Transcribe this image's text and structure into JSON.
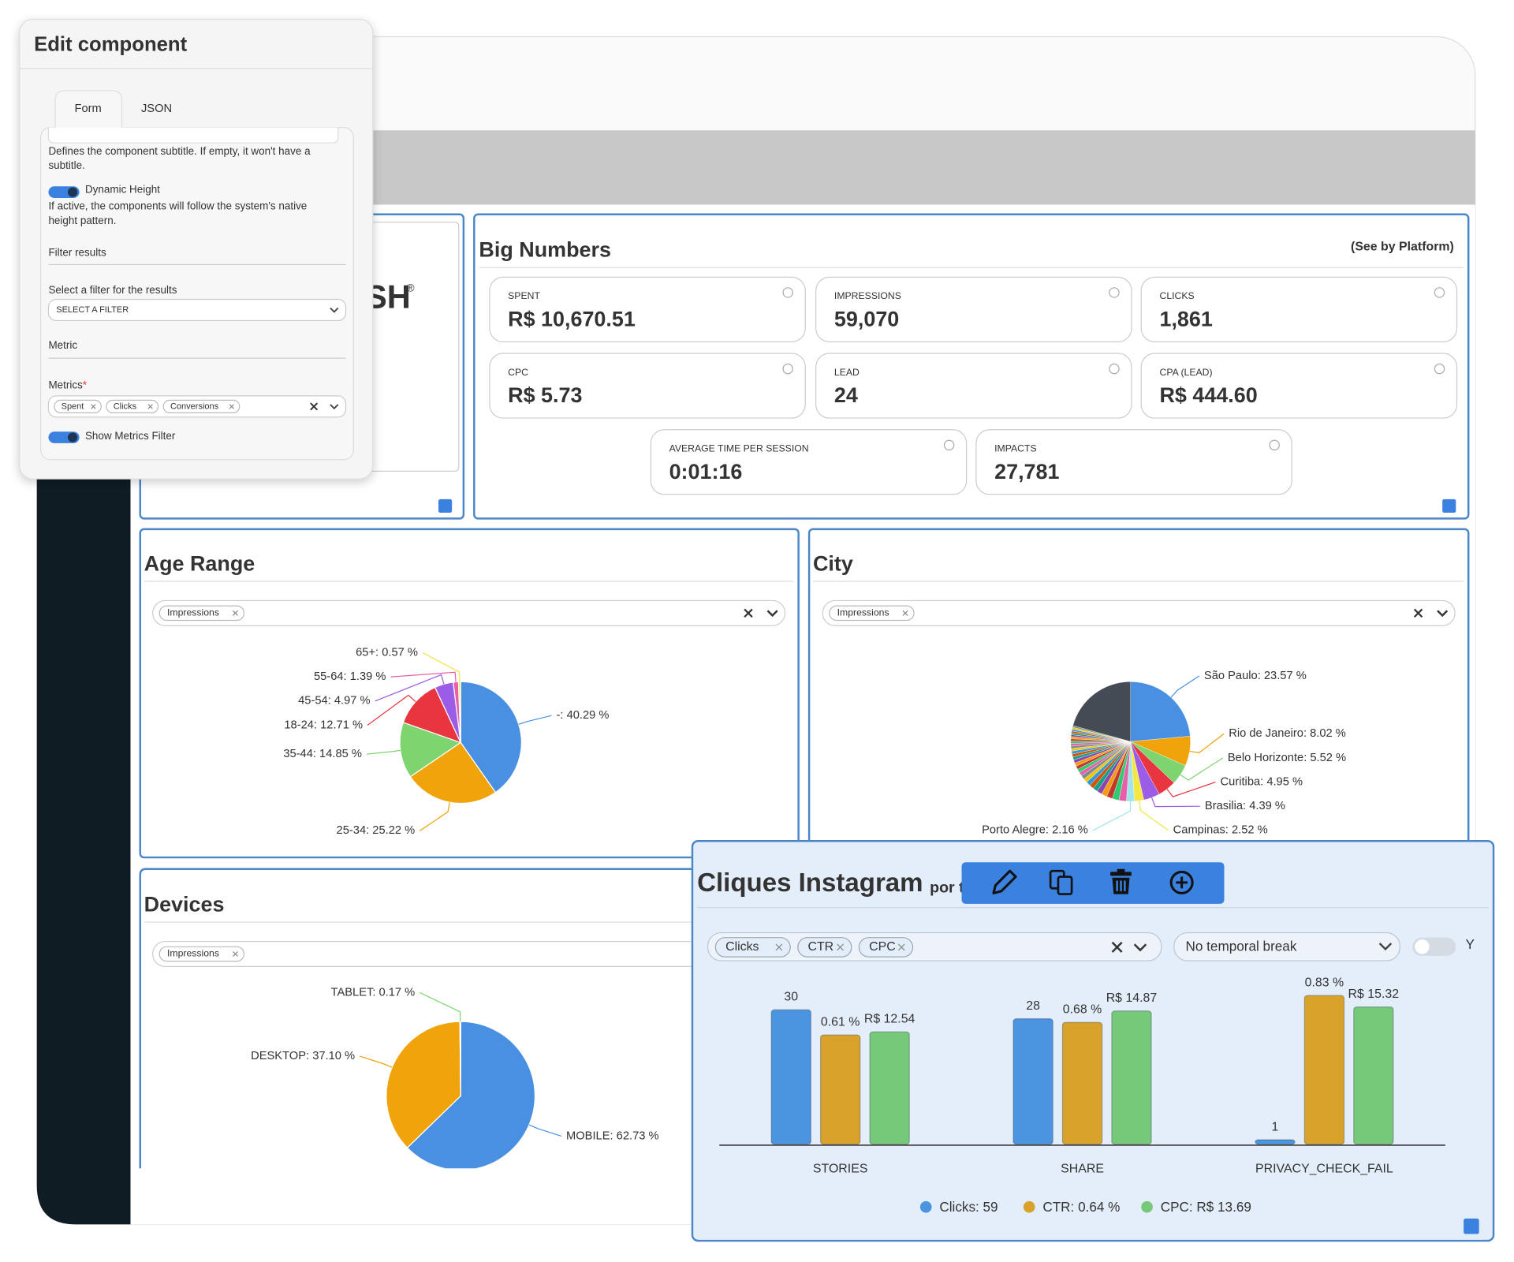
{
  "edit_panel": {
    "title": "Edit component",
    "tabs": [
      "Form",
      "JSON"
    ],
    "subtitle_help": [
      "Defines the component subtitle. If empty, it won't have a",
      "subtitle."
    ],
    "dynamic_height": {
      "label": "Dynamic Height",
      "help": [
        "If active, the components will follow the system's native",
        "height pattern."
      ],
      "on": true
    },
    "filter_section": "Filter results",
    "filter_label": "Select a filter for the results",
    "filter_placeholder": "SELECT A FILTER",
    "metric_section": "Metric",
    "metrics_label": "Metrics",
    "required_mark": "*",
    "metric_chips": [
      "Spent",
      "Clicks",
      "Conversions"
    ],
    "show_metrics_filter": {
      "label": "Show Metrics Filter",
      "on": true
    }
  },
  "logo": {
    "text": "SH",
    "mark": "®"
  },
  "big_numbers": {
    "title": "Big Numbers",
    "link": "(See by Platform)",
    "cards": [
      {
        "label": "SPENT",
        "value": "R$ 10,670.51"
      },
      {
        "label": "IMPRESSIONS",
        "value": "59,070"
      },
      {
        "label": "CLICKS",
        "value": "1,861"
      },
      {
        "label": "CPC",
        "value": "R$ 5.73"
      },
      {
        "label": "LEAD",
        "value": "24"
      },
      {
        "label": "CPA (LEAD)",
        "value": "R$ 444.60"
      },
      {
        "label": "AVERAGE TIME PER SESSION",
        "value": "0:01:16"
      },
      {
        "label": "IMPACTS",
        "value": "27,781"
      }
    ]
  },
  "chart_data": [
    {
      "type": "pie",
      "title": "Age Range",
      "filter_chips": [
        "Impressions"
      ],
      "values": [
        40.29,
        25.22,
        14.85,
        12.71,
        4.97,
        1.39,
        0.57
      ],
      "value_labels": [
        "-: 40.29 %",
        "25-34: 25.22 %",
        "35-44: 14.85 %",
        "18-24: 12.71 %",
        "45-54: 4.97 %",
        "55-64: 1.39 %",
        "65+: 0.57 %"
      ],
      "colors": [
        "#4a90e2",
        "#f0a30a",
        "#7ed56f",
        "#e8353f",
        "#9b5de5",
        "#e75fa8",
        "#f5e642"
      ]
    },
    {
      "type": "pie",
      "title": "City",
      "filter_chips": [
        "Impressions"
      ],
      "values": [
        23.57,
        8.02,
        5.52,
        4.95,
        4.39,
        2.52,
        2.16,
        2,
        1.8,
        1.6,
        1.5,
        1.4,
        1.3,
        1.2,
        1.2,
        1.1,
        1.1,
        1.0,
        1.0,
        0.9,
        0.9,
        0.9,
        0.8,
        0.8,
        0.8,
        0.7,
        0.7,
        0.7,
        0.6,
        0.6,
        0.6,
        0.5,
        0.5,
        0.5,
        0.5,
        0.5,
        0.47,
        20.7
      ],
      "value_labels": [
        "São Paulo: 23.57 %",
        "Rio de Janeiro: 8.02 %",
        "Belo Horizonte: 5.52 %",
        "Curitiba: 4.95 %",
        "Brasilia: 4.39 %",
        "Campinas: 2.52 %",
        "Porto Alegre: 2.16 %",
        null,
        null,
        null,
        null,
        null,
        null,
        null,
        null,
        null,
        null,
        null,
        null,
        null,
        null,
        null,
        null,
        null,
        null,
        null,
        null,
        null,
        null,
        null,
        null,
        null,
        null,
        null,
        null,
        null,
        null,
        null
      ],
      "colors": [
        "#4a90e2",
        "#f0a30a",
        "#7ed56f",
        "#e8353f",
        "#9b5de5",
        "#f5e642",
        "#9ee6ea",
        "#e75fa8",
        "#2ecc71",
        "#c0392b",
        "#f39c12",
        "#8e44ad",
        "#16a085",
        "#d35400",
        "#3498db",
        "#f1c40f",
        "#7f8c8d",
        "#e75fa8",
        "#2ecc71",
        "#c0392b",
        "#f39c12",
        "#8e44ad",
        "#16a085",
        "#d35400",
        "#3498db",
        "#f1c40f",
        "#7f8c8d",
        "#e75fa8",
        "#2ecc71",
        "#c0392b",
        "#f39c12",
        "#8e44ad",
        "#16a085",
        "#d35400",
        "#3498db",
        "#f1c40f",
        "#7f8c8d",
        "#454b55"
      ]
    },
    {
      "type": "pie",
      "title": "Devices",
      "filter_chips": [
        "Impressions"
      ],
      "values": [
        62.73,
        37.1,
        0.17
      ],
      "value_labels": [
        "MOBILE: 62.73 %",
        "DESKTOP: 37.10 %",
        "TABLET: 0.17 %"
      ],
      "colors": [
        "#4a90e2",
        "#f0a30a",
        "#7ed56f"
      ]
    },
    {
      "type": "bar",
      "title": "Cliques Instagram",
      "subtitle": "por t",
      "break_select": "No temporal break",
      "toggle_label": "Y",
      "categories": [
        "STORIES",
        "SHARE",
        "PRIVACY_CHECK_FAIL"
      ],
      "series": [
        {
          "name": "Clicks",
          "legend_label": "Clicks: 59",
          "color": "#4a94e0",
          "values": [
            30,
            28,
            1
          ],
          "ylim": [
            0,
            36
          ]
        },
        {
          "name": "CTR",
          "legend_label": "CTR: 0.64 %",
          "color": "#d9a22b",
          "values": [
            0.61,
            0.68,
            0.83
          ],
          "value_labels": [
            "0.61 %",
            "0.68 %",
            "0.83 %"
          ],
          "ylim": [
            0,
            0.9
          ]
        },
        {
          "name": "CPC",
          "legend_label": "CPC: R$ 13.69",
          "color": "#77c97a",
          "values": [
            12.54,
            14.87,
            15.32
          ],
          "value_labels": [
            "R$ 12.54",
            "R$ 14.87",
            "R$ 15.32"
          ],
          "ylim": [
            0,
            18
          ]
        }
      ]
    }
  ]
}
